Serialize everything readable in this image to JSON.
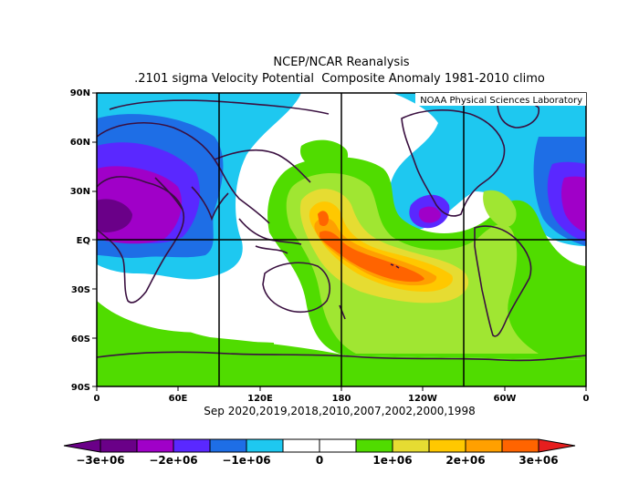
{
  "title": "NCEP/NCAR Reanalysis",
  "subtitle": ".2101 sigma Velocity Potential  Composite Anomaly 1981-2010 climo",
  "watermark": "NOAA Physical Sciences Laboratory",
  "years_caption": "Sep 2020,2019,2018,2010,2007,2002,2000,1998",
  "lat_labels": [
    "90N",
    "60N",
    "30N",
    "EQ",
    "30S",
    "60S",
    "90S"
  ],
  "lon_labels": [
    "0",
    "60E",
    "120E",
    "180",
    "120W",
    "60W",
    "0"
  ],
  "colorbar": {
    "labels": [
      "−3e+06",
      "−2e+06",
      "−1e+06",
      "0",
      "1e+06",
      "2e+06",
      "3e+06"
    ],
    "colors": [
      "#6a0088",
      "#a000c8",
      "#c832ff",
      "#5a28ff",
      "#1e6ee6",
      "#1ec8f0",
      "#ffffff",
      "#ffffff",
      "#50dc00",
      "#a0e632",
      "#e6dc32",
      "#ffc800",
      "#ffa000",
      "#ff6400",
      "#e61e1e"
    ]
  },
  "colors": {
    "neg_strong": "#a000c8",
    "neg_mid": "#5a28ff",
    "neg_light": "#1ec8f0",
    "pos_light": "#50dc00",
    "pos_mid": "#e6dc32",
    "pos_strong": "#ff6400"
  }
}
